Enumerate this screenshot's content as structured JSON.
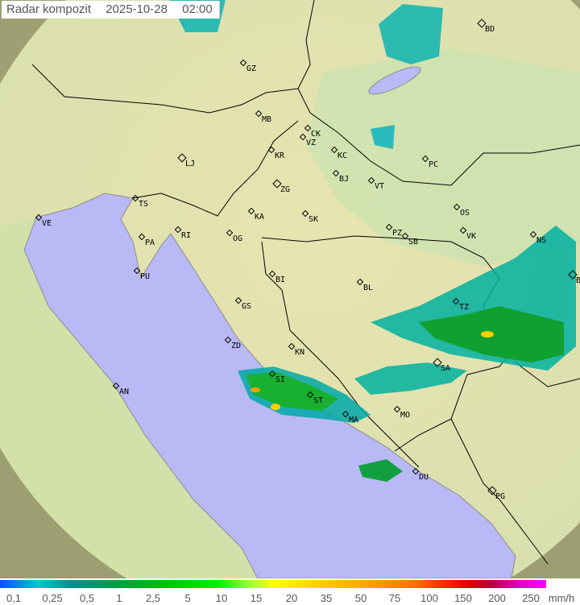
{
  "header": {
    "title": "Radar kompozit",
    "date": "2025-10-28",
    "time": "02:00"
  },
  "legend": {
    "unit": "mm/h",
    "ticks": [
      "0,1",
      "0,25",
      "0,5",
      "1",
      "2,5",
      "5",
      "10",
      "15",
      "20",
      "35",
      "50",
      "75",
      "100",
      "150",
      "200",
      "250"
    ]
  },
  "colors": {
    "sea": "#b9b9f6",
    "land": "#dfe5b0",
    "outside_range": "#8a8a60",
    "light_rain": "#00b0b0",
    "moderate_rain": "#00b000",
    "heavy_rain": "#ffd000"
  },
  "cities": [
    "GZ",
    "BD",
    "MB",
    "CK",
    "VZ",
    "KR",
    "KC",
    "PC",
    "LJ",
    "BJ",
    "VT",
    "ZG",
    "TS",
    "VE",
    "KA",
    "SK",
    "OS",
    "RI",
    "PA",
    "OG",
    "PZ",
    "SB",
    "VK",
    "NS",
    "PU",
    "BI",
    "BL",
    "BG",
    "TZ",
    "GS",
    "ZD",
    "KN",
    "SA",
    "AN",
    "SI",
    "ST",
    "MO",
    "MA",
    "DU",
    "PG"
  ]
}
